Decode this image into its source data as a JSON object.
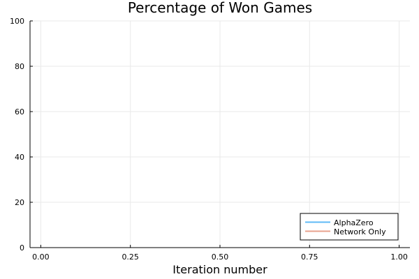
{
  "chart_data": {
    "type": "line",
    "title": "Percentage of Won Games",
    "xlabel": "Iteration number",
    "ylabel": "",
    "xlim": [
      -0.03,
      1.03
    ],
    "ylim": [
      0,
      100
    ],
    "x_ticks": [
      0.0,
      0.25,
      0.5,
      0.75,
      1.0
    ],
    "x_tick_labels": [
      "0.00",
      "0.25",
      "0.50",
      "0.75",
      "1.00"
    ],
    "y_ticks": [
      0,
      20,
      40,
      60,
      80,
      100
    ],
    "y_tick_labels": [
      "0",
      "20",
      "40",
      "60",
      "80",
      "100"
    ],
    "grid": true,
    "legend_position": "bottom-right",
    "series": [
      {
        "name": "AlphaZero",
        "color": "#5fb9f6",
        "x": [],
        "y": []
      },
      {
        "name": "Network Only",
        "color": "#e8a28e",
        "x": [],
        "y": []
      }
    ]
  }
}
